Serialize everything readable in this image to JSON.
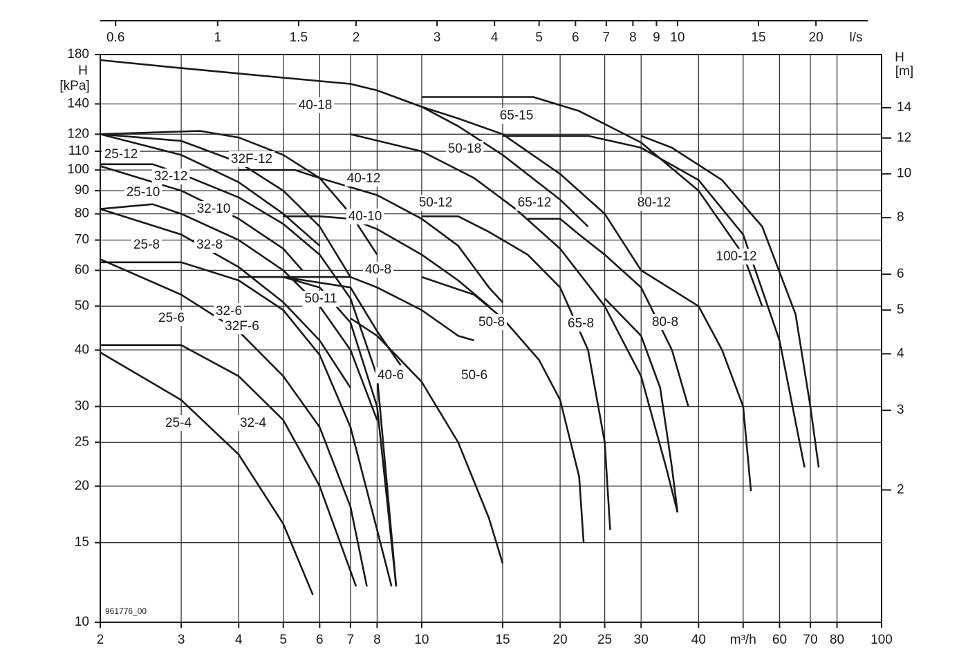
{
  "chart_data": {
    "type": "line",
    "xscale": "log",
    "yscale": "log",
    "xlim": [
      2,
      100
    ],
    "ylim": [
      10,
      180
    ],
    "xticks": [
      2,
      3,
      4,
      5,
      6,
      7,
      8,
      10,
      15,
      20,
      25,
      30,
      40,
      {
        "value": 50,
        "label": "m³/h"
      },
      60,
      70,
      80,
      100
    ],
    "yticks": [
      10,
      15,
      20,
      25,
      30,
      40,
      50,
      60,
      70,
      80,
      90,
      100,
      110,
      120,
      140,
      180
    ],
    "ylabel": [
      "H",
      "[kPa]"
    ],
    "x2lim": [
      0.5556,
      27.78
    ],
    "x2ticks": [
      0.6,
      1,
      1.5,
      2,
      3,
      4,
      5,
      6,
      7,
      8,
      9,
      10,
      15,
      20
    ],
    "x2label": "l/s",
    "y2lim": [
      1.0197,
      18.355
    ],
    "y2ticks": [
      2,
      3,
      4,
      5,
      6,
      8,
      10,
      12,
      14
    ],
    "y2label": [
      "H",
      "[m]"
    ],
    "code": "961776_00",
    "grid": true,
    "line_color": "#1a1a1a",
    "series": [
      {
        "name": "25-4",
        "x": [
          2,
          3,
          4,
          5,
          5.8
        ],
        "values": [
          39.5,
          31,
          23.5,
          16.5,
          11.5
        ]
      },
      {
        "name": "32-4",
        "x": [
          2,
          3,
          4,
          5,
          6,
          7.2
        ],
        "values": [
          41,
          41,
          35,
          28,
          20,
          12
        ]
      },
      {
        "name": "25-6",
        "x": [
          2,
          3,
          4,
          5,
          6,
          7,
          7.6
        ],
        "values": [
          63.5,
          53,
          44,
          35,
          27,
          18,
          12
        ]
      },
      {
        "name": "32-6",
        "x": [
          2,
          3,
          4,
          5,
          6,
          7,
          8,
          8.6
        ],
        "values": [
          62.5,
          62.5,
          57,
          49,
          39,
          27,
          16,
          12
        ]
      },
      {
        "name": "32F-6",
        "x": [
          4,
          5,
          6,
          7,
          8,
          8.8
        ],
        "values": [
          58,
          58,
          55,
          46,
          30,
          12
        ]
      },
      {
        "name": "25-8",
        "x": [
          2,
          3,
          4,
          5,
          6,
          7
        ],
        "values": [
          82,
          72,
          61,
          51,
          42,
          33
        ]
      },
      {
        "name": "32-8",
        "x": [
          2,
          2.6,
          3,
          4,
          5,
          6,
          7,
          8
        ],
        "values": [
          82,
          84,
          80,
          70,
          60,
          50,
          40,
          28
        ]
      },
      {
        "name": "25-10",
        "x": [
          2,
          3,
          4,
          5,
          5.5
        ],
        "values": [
          102,
          90,
          78,
          67,
          60
        ]
      },
      {
        "name": "32-10",
        "x": [
          2,
          2.6,
          3,
          4,
          5,
          6,
          7,
          8,
          8.8
        ],
        "values": [
          103,
          103,
          98,
          87,
          76,
          65,
          52,
          35,
          12
        ]
      },
      {
        "name": "25-12",
        "x": [
          2,
          3,
          4,
          5,
          6
        ],
        "values": [
          120,
          108,
          94,
          80,
          68
        ]
      },
      {
        "name": "32-12",
        "x": [
          2,
          3,
          4,
          5,
          6,
          7
        ],
        "values": [
          120,
          116,
          104,
          90,
          75,
          58
        ]
      },
      {
        "name": "32F-12",
        "x": [
          2,
          3.3,
          4,
          5,
          6,
          7,
          8
        ],
        "values": [
          120,
          122,
          118,
          108,
          96,
          80,
          65
        ]
      },
      {
        "name": "40-18",
        "x": [
          2,
          3,
          5,
          7,
          8,
          10,
          12,
          15,
          20,
          23
        ],
        "values": [
          175,
          168,
          160,
          155,
          150,
          138,
          125,
          108,
          86,
          75
        ]
      },
      {
        "name": "40-12",
        "x": [
          4,
          5.3,
          6,
          8,
          10,
          12,
          14,
          15
        ],
        "values": [
          100,
          100,
          96,
          88,
          78,
          68,
          55,
          51
        ]
      },
      {
        "name": "40-10",
        "x": [
          5,
          6,
          7,
          8,
          10,
          12,
          14
        ],
        "values": [
          79,
          79,
          78,
          74,
          65,
          57,
          50
        ]
      },
      {
        "name": "40-8",
        "x": [
          5,
          7,
          8,
          10,
          12,
          13
        ],
        "values": [
          58,
          58,
          55,
          49,
          43,
          42
        ]
      },
      {
        "name": "50-11",
        "x": [
          5,
          7,
          8,
          9
        ],
        "values": [
          58,
          55,
          44,
          37
        ]
      },
      {
        "name": "40-6",
        "x": [
          7,
          8,
          9,
          10,
          12,
          14,
          15
        ],
        "values": [
          47,
          43,
          38,
          34,
          25,
          17,
          13.5
        ]
      },
      {
        "name": "50-6",
        "x": [
          10,
          13,
          15,
          18,
          20,
          22,
          22.5
        ],
        "values": [
          58,
          53,
          47,
          38,
          31,
          21,
          15
        ]
      },
      {
        "name": "50-8",
        "x": [
          10,
          12,
          14,
          17,
          20,
          23,
          25,
          25.7
        ],
        "values": [
          79,
          79,
          73,
          65,
          55,
          40,
          25,
          16
        ]
      },
      {
        "name": "50-12",
        "x": [
          7,
          10,
          13,
          16,
          20,
          25,
          30,
          34,
          36
        ],
        "values": [
          120,
          110,
          96,
          82,
          67,
          50,
          35,
          22,
          17.5
        ]
      },
      {
        "name": "50-18",
        "x": [
          10,
          12,
          15,
          20,
          25,
          30
        ],
        "values": [
          138,
          130,
          120,
          98,
          80,
          60
        ]
      },
      {
        "name": "65-12",
        "x": [
          17,
          20,
          22,
          25,
          30,
          35,
          38
        ],
        "values": [
          78,
          78,
          72,
          65,
          55,
          40,
          30
        ]
      },
      {
        "name": "65-8",
        "x": [
          25,
          30,
          33,
          35,
          36
        ],
        "values": [
          52,
          43,
          33,
          22,
          17.5
        ]
      },
      {
        "name": "65-15",
        "x": [
          10,
          15,
          17.5,
          22,
          30,
          40,
          50,
          55
        ],
        "values": [
          145,
          145,
          145,
          135,
          115,
          90,
          65,
          50
        ]
      },
      {
        "name": "80-12",
        "x": [
          15,
          23,
          30,
          40,
          50,
          60,
          68
        ],
        "values": [
          119,
          119,
          112,
          95,
          72,
          42,
          22
        ]
      },
      {
        "name": "80-8",
        "x": [
          30,
          40,
          45,
          50,
          52
        ],
        "values": [
          60,
          50,
          40,
          30,
          19.5
        ]
      },
      {
        "name": "100-12",
        "x": [
          30,
          35,
          45,
          55,
          65,
          70,
          73
        ],
        "values": [
          119,
          112,
          95,
          75,
          48,
          30,
          22
        ]
      }
    ]
  }
}
